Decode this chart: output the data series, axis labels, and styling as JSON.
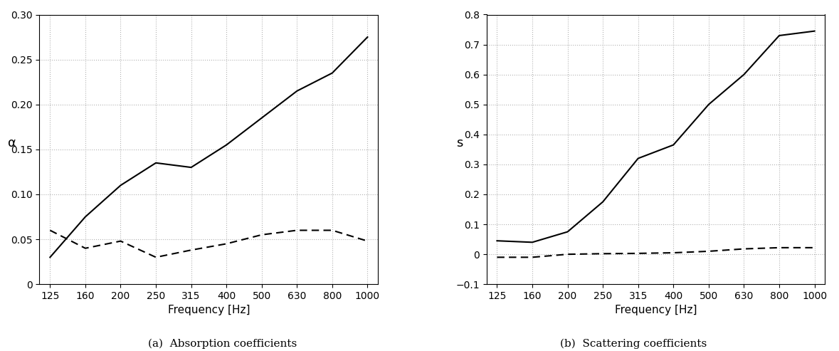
{
  "frequencies": [
    125,
    160,
    200,
    250,
    315,
    400,
    500,
    630,
    800,
    1000
  ],
  "alpha_solid": [
    0.03,
    0.075,
    0.11,
    0.135,
    0.13,
    0.155,
    0.185,
    0.215,
    0.235,
    0.275
  ],
  "alpha_dashed": [
    0.06,
    0.04,
    0.048,
    0.03,
    0.038,
    0.045,
    0.055,
    0.06,
    0.06,
    0.048
  ],
  "s_solid": [
    0.045,
    0.04,
    0.075,
    0.175,
    0.32,
    0.365,
    0.5,
    0.6,
    0.73,
    0.745
  ],
  "s_dashed": [
    -0.01,
    -0.01,
    0.0,
    0.002,
    0.003,
    0.005,
    0.01,
    0.018,
    0.022,
    0.022
  ],
  "alpha_ylim": [
    0,
    0.3
  ],
  "alpha_yticks": [
    0,
    0.05,
    0.1,
    0.15,
    0.2,
    0.25,
    0.3
  ],
  "s_ylim": [
    -0.1,
    0.8
  ],
  "s_yticks": [
    -0.1,
    0.0,
    0.1,
    0.2,
    0.3,
    0.4,
    0.5,
    0.6,
    0.7,
    0.8
  ],
  "xlabel": "Frequency [Hz]",
  "alpha_ylabel": "α",
  "s_ylabel": "s",
  "caption_a": "(a)  Absorption coefficients",
  "caption_b": "(b)  Scattering coefficients",
  "line_color": "#000000",
  "background_color": "#ffffff",
  "grid_color": "#aaaaaa",
  "tick_fontsize": 10,
  "label_fontsize": 11,
  "ylabel_fontsize": 13
}
